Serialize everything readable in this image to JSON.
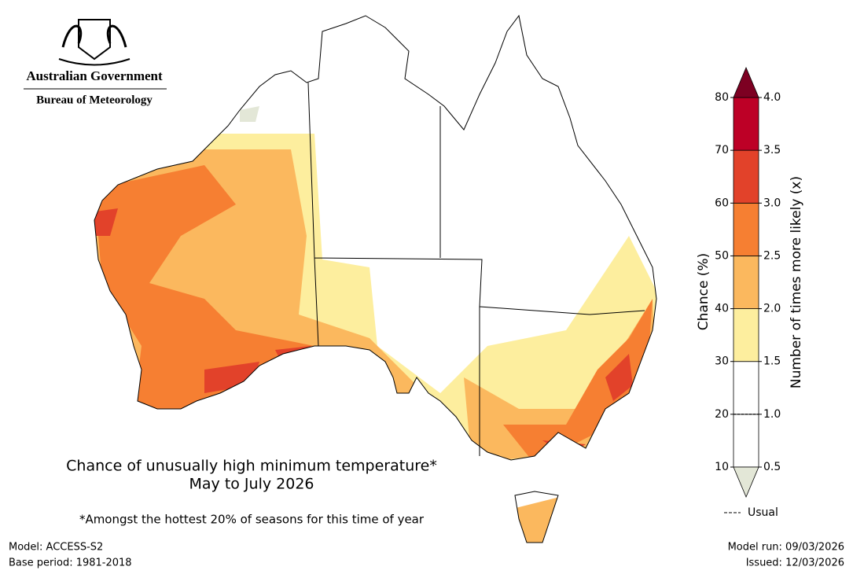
{
  "header": {
    "government": "Australian Government",
    "agency": "Bureau of Meteorology"
  },
  "chart_data": {
    "type": "map",
    "title": "Chance of unusually high minimum temperature*",
    "subtitle": "May to July 2026",
    "footnote": "*Amongst the hottest 20% of seasons for this time of year",
    "colorbar": {
      "label": "Chance (%)",
      "label2": "Number of times more likely (x)",
      "ylim": [
        10,
        80
      ],
      "ticks": [
        10,
        20,
        30,
        40,
        50,
        60,
        70,
        80
      ],
      "ticks2": [
        0.5,
        {
          "value": 1,
          "label": "1.0"
        },
        1.5,
        {
          "value": 2,
          "label": "2.0"
        },
        2.5,
        {
          "value": 3,
          "label": "3.0"
        },
        3.5,
        {
          "value": 4,
          "label": "4.0"
        }
      ],
      "colors": [
        "#ffffff",
        "#ffffff",
        "#fdee9e",
        "#fbb85e",
        "#f67f32",
        "#e2422a",
        "#bd0026"
      ],
      "over_color": "#7d0022",
      "under_color": "#e3e7d7",
      "usual_label": "Usual"
    }
  },
  "footer": {
    "model": "Model: ACCESS-S2",
    "base_period": "Base period: 1981-2018",
    "model_run": "Model run: 09/03/2026",
    "issued": "Issued: 12/03/2026"
  }
}
